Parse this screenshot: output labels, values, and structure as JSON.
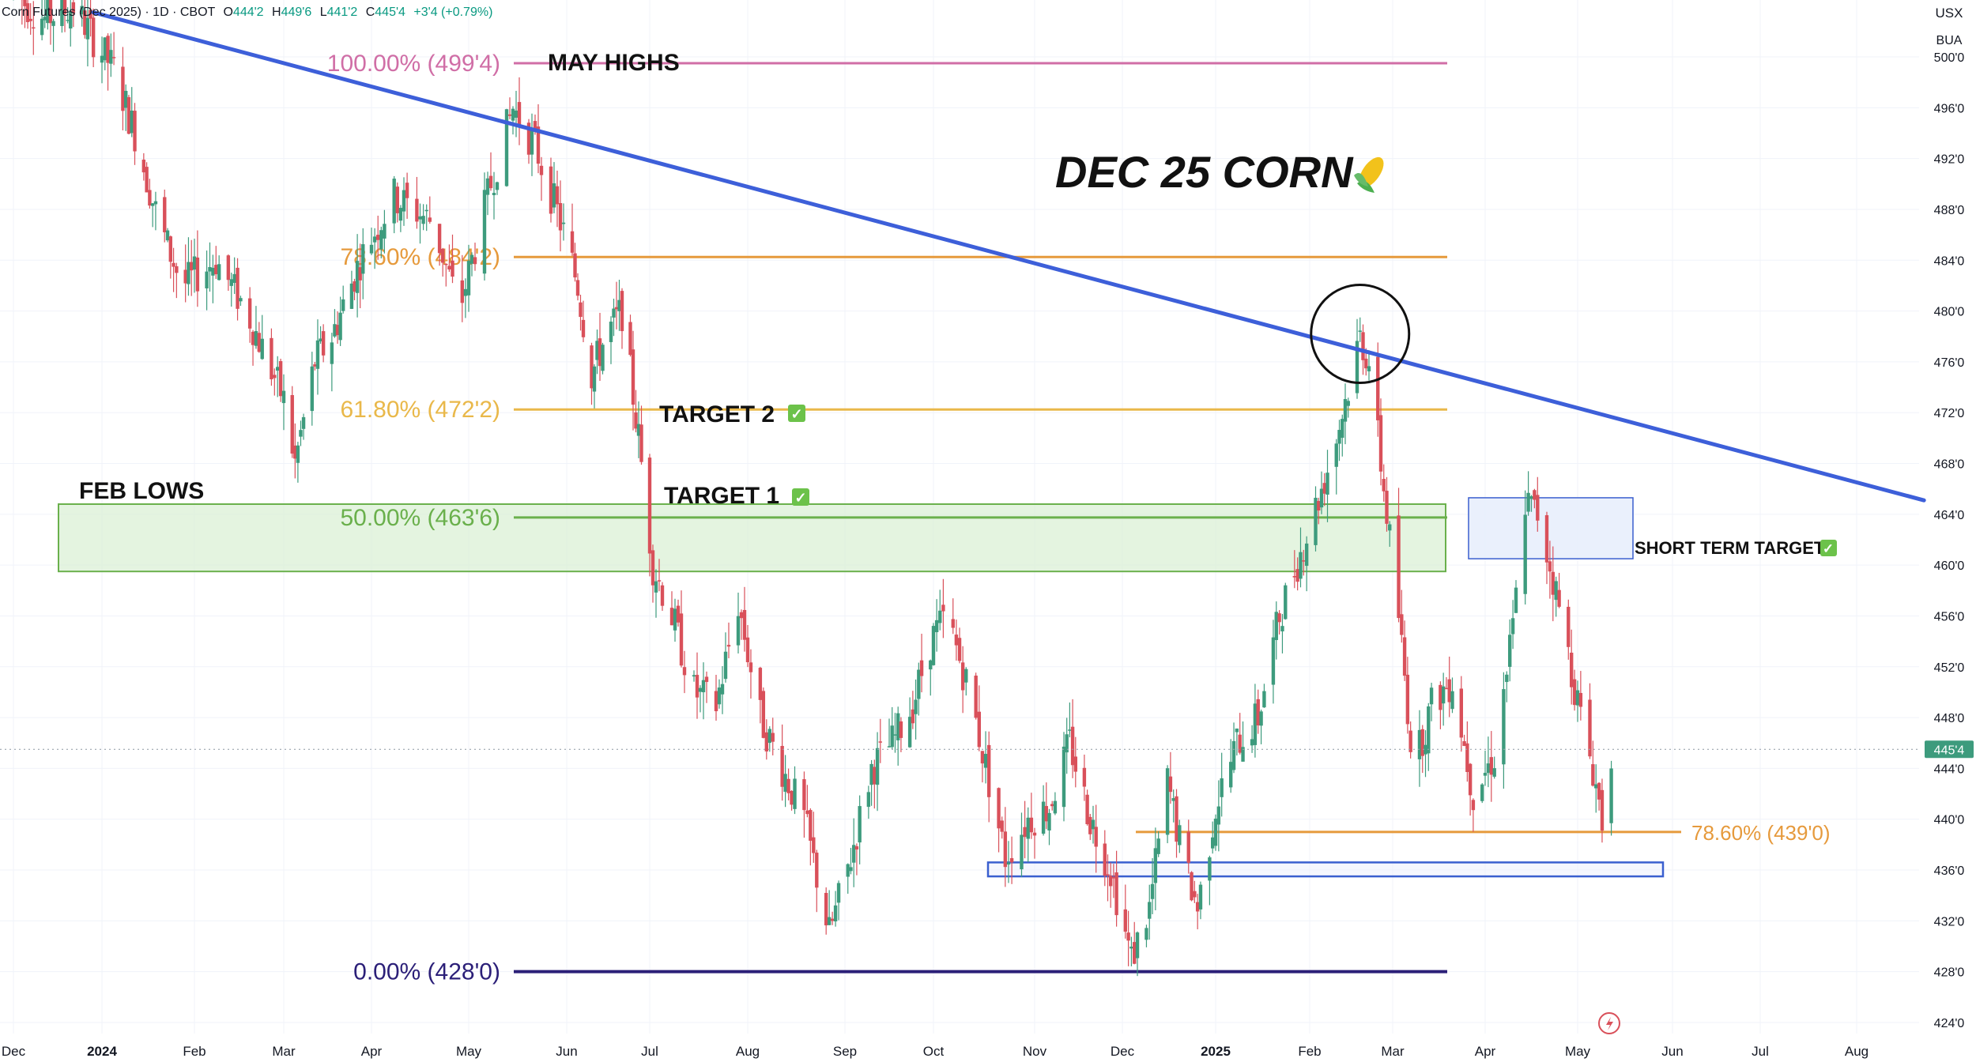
{
  "header": {
    "symbol": "Corn Futures (Dec 2025) · 1D · CBOT",
    "o_label": "O",
    "o_val": "444'2",
    "h_label": "H",
    "h_val": "449'6",
    "l_label": "L",
    "l_val": "441'2",
    "c_label": "C",
    "c_val": "445'4",
    "change": "+3'4 (+0.79%)"
  },
  "axis_units": {
    "currency": "USX",
    "unit": "BUA"
  },
  "title": "DEC 25 CORN",
  "title_icon": "corn-emoji-icon",
  "colors": {
    "up": "#3d9b7d",
    "down": "#d9505a",
    "trend": "#3d5fd9",
    "orange": "#e69a3c",
    "fib100": "#d06ea6",
    "fib618": "#e9b84a",
    "fib50": "#6ab04c",
    "fib0": "#2b1f78",
    "zone_blue": "#3a5fcf"
  },
  "annotations": {
    "may_highs": "MAY HIGHS",
    "feb_lows": "FEB LOWS",
    "target2": "TARGET 2",
    "target1": "TARGET 1",
    "short_term": "SHORT TERM TARGET",
    "check": "✓"
  },
  "current_price": "445'4",
  "chart_data": {
    "type": "candlestick",
    "title": "DEC 25 CORN",
    "x_tick_labels": [
      "Dec",
      "2024",
      "Feb",
      "Mar",
      "Apr",
      "May",
      "Jun",
      "Jul",
      "Aug",
      "Sep",
      "Oct",
      "Nov",
      "Dec",
      "2025",
      "Feb",
      "Mar",
      "Apr",
      "May",
      "Jun",
      "Jul",
      "Aug"
    ],
    "y_tick_labels": [
      "500'0",
      "496'0",
      "492'0",
      "488'0",
      "484'0",
      "480'0",
      "476'0",
      "472'0",
      "468'0",
      "464'0",
      "460'0",
      "456'0",
      "452'0",
      "448'0",
      "444'0",
      "440'0",
      "436'0",
      "432'0",
      "428'0",
      "424'0"
    ],
    "y_ticks": [
      500,
      496,
      492,
      488,
      484,
      480,
      476,
      472,
      468,
      464,
      460,
      456,
      452,
      448,
      444,
      440,
      436,
      432,
      428,
      424
    ],
    "ylim": [
      422.5,
      502.5
    ],
    "fib_levels": [
      {
        "label": "100.00% (499'4)",
        "value": 499.5,
        "color": "#d06ea6"
      },
      {
        "label": "78.60% (484'2)",
        "value": 484.25,
        "color": "#e69a3c"
      },
      {
        "label": "61.80% (472'2)",
        "value": 472.25,
        "color": "#e9b84a"
      },
      {
        "label": "50.00% (463'6)",
        "value": 463.75,
        "color": "#6ab04c"
      },
      {
        "label": "0.00% (428'0)",
        "value": 428.0,
        "color": "#2b1f78"
      },
      {
        "label": "78.60% (439'0)",
        "value": 439.0,
        "color": "#e69a3c"
      }
    ],
    "zones": [
      {
        "name": "feb-lows-zone",
        "from": 459.5,
        "to": 464.8
      },
      {
        "name": "short-term-target-zone",
        "from": 460.5,
        "to": 465.3
      },
      {
        "name": "support-zone",
        "from": 435.5,
        "to": 436.6
      }
    ],
    "trendline": {
      "start": {
        "date": "2023-12-29",
        "price": 503.5
      },
      "end": {
        "date": "2025-08-23",
        "price": 465.1
      }
    },
    "close_path": [
      {
        "date": "2023-12-01",
        "price": 505
      },
      {
        "date": "2023-12-12",
        "price": 503
      },
      {
        "date": "2023-12-22",
        "price": 504
      },
      {
        "date": "2024-01-05",
        "price": 499
      },
      {
        "date": "2024-01-12",
        "price": 494
      },
      {
        "date": "2024-01-20",
        "price": 487
      },
      {
        "date": "2024-01-28",
        "price": 482
      },
      {
        "date": "2024-02-08",
        "price": 484
      },
      {
        "date": "2024-02-18",
        "price": 480
      },
      {
        "date": "2024-03-01",
        "price": 473
      },
      {
        "date": "2024-03-05",
        "price": 468
      },
      {
        "date": "2024-03-12",
        "price": 476
      },
      {
        "date": "2024-03-18",
        "price": 478
      },
      {
        "date": "2024-03-28",
        "price": 484
      },
      {
        "date": "2024-04-08",
        "price": 489
      },
      {
        "date": "2024-04-20",
        "price": 487
      },
      {
        "date": "2024-04-28",
        "price": 480
      },
      {
        "date": "2024-05-08",
        "price": 490
      },
      {
        "date": "2024-05-15",
        "price": 496
      },
      {
        "date": "2024-05-22",
        "price": 493
      },
      {
        "date": "2024-05-30",
        "price": 487
      },
      {
        "date": "2024-06-05",
        "price": 482
      },
      {
        "date": "2024-06-10",
        "price": 475
      },
      {
        "date": "2024-06-15",
        "price": 478
      },
      {
        "date": "2024-06-21",
        "price": 480
      },
      {
        "date": "2024-06-27",
        "price": 470
      },
      {
        "date": "2024-07-02",
        "price": 460
      },
      {
        "date": "2024-07-08",
        "price": 456
      },
      {
        "date": "2024-07-15",
        "price": 450
      },
      {
        "date": "2024-07-22",
        "price": 449
      },
      {
        "date": "2024-07-29",
        "price": 457
      },
      {
        "date": "2024-08-05",
        "price": 448
      },
      {
        "date": "2024-08-12",
        "price": 444
      },
      {
        "date": "2024-08-19",
        "price": 440
      },
      {
        "date": "2024-08-27",
        "price": 431
      },
      {
        "date": "2024-09-03",
        "price": 437
      },
      {
        "date": "2024-09-10",
        "price": 444
      },
      {
        "date": "2024-09-17",
        "price": 446
      },
      {
        "date": "2024-09-24",
        "price": 449
      },
      {
        "date": "2024-09-30",
        "price": 454
      },
      {
        "date": "2024-10-05",
        "price": 456
      },
      {
        "date": "2024-10-12",
        "price": 450
      },
      {
        "date": "2024-10-18",
        "price": 443
      },
      {
        "date": "2024-10-23",
        "price": 437
      },
      {
        "date": "2024-10-30",
        "price": 440
      },
      {
        "date": "2024-11-06",
        "price": 441
      },
      {
        "date": "2024-11-13",
        "price": 446
      },
      {
        "date": "2024-11-20",
        "price": 440
      },
      {
        "date": "2024-11-27",
        "price": 436
      },
      {
        "date": "2024-12-04",
        "price": 429
      },
      {
        "date": "2024-12-10",
        "price": 433
      },
      {
        "date": "2024-12-16",
        "price": 443
      },
      {
        "date": "2024-12-21",
        "price": 437
      },
      {
        "date": "2024-12-26",
        "price": 433
      },
      {
        "date": "2025-01-01",
        "price": 441
      },
      {
        "date": "2025-01-08",
        "price": 446
      },
      {
        "date": "2025-01-15",
        "price": 448
      },
      {
        "date": "2025-01-22",
        "price": 456
      },
      {
        "date": "2025-01-29",
        "price": 461
      },
      {
        "date": "2025-02-05",
        "price": 466
      },
      {
        "date": "2025-02-10",
        "price": 470
      },
      {
        "date": "2025-02-14",
        "price": 474
      },
      {
        "date": "2025-02-18",
        "price": 478
      },
      {
        "date": "2025-02-21",
        "price": 476
      },
      {
        "date": "2025-02-26",
        "price": 466
      },
      {
        "date": "2025-03-03",
        "price": 456
      },
      {
        "date": "2025-03-08",
        "price": 444
      },
      {
        "date": "2025-03-14",
        "price": 449
      },
      {
        "date": "2025-03-21",
        "price": 451
      },
      {
        "date": "2025-03-28",
        "price": 442
      },
      {
        "date": "2025-04-04",
        "price": 445
      },
      {
        "date": "2025-04-10",
        "price": 455
      },
      {
        "date": "2025-04-14",
        "price": 465
      },
      {
        "date": "2025-04-18",
        "price": 464
      },
      {
        "date": "2025-04-23",
        "price": 459
      },
      {
        "date": "2025-04-28",
        "price": 453
      },
      {
        "date": "2025-05-02",
        "price": 448
      },
      {
        "date": "2025-05-06",
        "price": 444
      },
      {
        "date": "2025-05-09",
        "price": 440
      },
      {
        "date": "2025-05-12",
        "price": 445.5
      }
    ]
  }
}
